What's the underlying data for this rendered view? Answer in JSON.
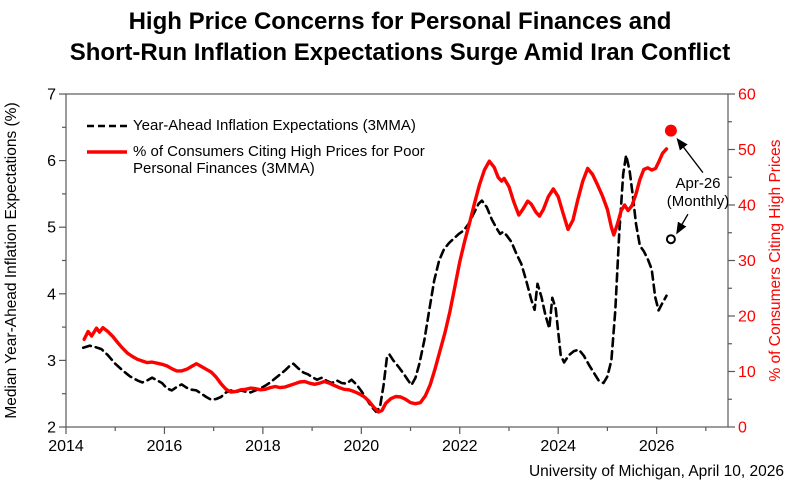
{
  "title": {
    "line1": "High Price Concerns for Personal Finances and",
    "line2": "Short-Run Inflation Expectations Surge Amid Iran Conflict"
  },
  "legend": {
    "row1": "Year-Ahead Inflation Expectations (3MMA)",
    "row2a": "% of Consumers Citing High Prices for Poor",
    "row2b": "Personal Finances (3MMA)"
  },
  "annotation": {
    "line1": "Apr-26",
    "line2": "(Monthly)"
  },
  "source": "University of Michigan, April 10, 2026",
  "chart_data": {
    "type": "line",
    "title": "High Price Concerns for Personal Finances and Short-Run Inflation Expectations Surge Amid Iran Conflict",
    "axis_color": "#595959",
    "legend_position": "top-left",
    "grid": false,
    "x_axis": {
      "label": "",
      "range": [
        2014,
        2027.45
      ],
      "major_ticks": [
        2014,
        2016,
        2018,
        2020,
        2022,
        2024,
        2026
      ],
      "minor_ticks": [
        2015,
        2017,
        2019,
        2021,
        2023,
        2025,
        2027
      ]
    },
    "left_axis": {
      "label": "Median Year-Ahead Inflation Expectations (%)",
      "color": "#000000",
      "range": [
        2,
        7
      ],
      "major_ticks": [
        2,
        3,
        4,
        5,
        6,
        7
      ],
      "minor_ticks": [
        2.5,
        3.5,
        4.5,
        5.5,
        6.5
      ]
    },
    "right_axis": {
      "label": "% of Consumers Citing High Prices",
      "color": "#ff0000",
      "range": [
        0,
        60
      ],
      "major_ticks": [
        0,
        10,
        20,
        30,
        40,
        50,
        60
      ],
      "minor_ticks": [
        5,
        15,
        25,
        35,
        45,
        55
      ]
    },
    "series": [
      {
        "name": "Year-Ahead Inflation Expectations (3MMA)",
        "axis": "left",
        "style": "dashed",
        "color": "#000000",
        "width": 2.6,
        "points": [
          [
            2014.35,
            3.19
          ],
          [
            2014.48,
            3.22
          ],
          [
            2014.6,
            3.2
          ],
          [
            2014.72,
            3.17
          ],
          [
            2014.85,
            3.08
          ],
          [
            2015.0,
            2.95
          ],
          [
            2015.15,
            2.85
          ],
          [
            2015.3,
            2.76
          ],
          [
            2015.45,
            2.7
          ],
          [
            2015.55,
            2.67
          ],
          [
            2015.65,
            2.7
          ],
          [
            2015.75,
            2.74
          ],
          [
            2015.85,
            2.7
          ],
          [
            2015.95,
            2.66
          ],
          [
            2016.05,
            2.58
          ],
          [
            2016.15,
            2.55
          ],
          [
            2016.25,
            2.6
          ],
          [
            2016.35,
            2.64
          ],
          [
            2016.45,
            2.59
          ],
          [
            2016.55,
            2.56
          ],
          [
            2016.65,
            2.55
          ],
          [
            2016.75,
            2.5
          ],
          [
            2016.85,
            2.45
          ],
          [
            2016.95,
            2.41
          ],
          [
            2017.05,
            2.42
          ],
          [
            2017.15,
            2.45
          ],
          [
            2017.25,
            2.52
          ],
          [
            2017.35,
            2.55
          ],
          [
            2017.45,
            2.52
          ],
          [
            2017.55,
            2.55
          ],
          [
            2017.65,
            2.53
          ],
          [
            2017.75,
            2.52
          ],
          [
            2017.85,
            2.55
          ],
          [
            2017.95,
            2.58
          ],
          [
            2018.05,
            2.62
          ],
          [
            2018.15,
            2.67
          ],
          [
            2018.25,
            2.73
          ],
          [
            2018.35,
            2.79
          ],
          [
            2018.45,
            2.85
          ],
          [
            2018.55,
            2.92
          ],
          [
            2018.62,
            2.95
          ],
          [
            2018.72,
            2.88
          ],
          [
            2018.82,
            2.82
          ],
          [
            2018.92,
            2.79
          ],
          [
            2019.0,
            2.75
          ],
          [
            2019.1,
            2.71
          ],
          [
            2019.2,
            2.74
          ],
          [
            2019.3,
            2.69
          ],
          [
            2019.4,
            2.66
          ],
          [
            2019.5,
            2.7
          ],
          [
            2019.6,
            2.66
          ],
          [
            2019.7,
            2.65
          ],
          [
            2019.8,
            2.71
          ],
          [
            2019.9,
            2.64
          ],
          [
            2020.0,
            2.54
          ],
          [
            2020.1,
            2.43
          ],
          [
            2020.2,
            2.31
          ],
          [
            2020.3,
            2.23
          ],
          [
            2020.38,
            2.3
          ],
          [
            2020.45,
            2.62
          ],
          [
            2020.52,
            3.04
          ],
          [
            2020.57,
            3.09
          ],
          [
            2020.65,
            3.0
          ],
          [
            2020.75,
            2.91
          ],
          [
            2020.85,
            2.81
          ],
          [
            2020.95,
            2.7
          ],
          [
            2021.02,
            2.63
          ],
          [
            2021.1,
            2.74
          ],
          [
            2021.18,
            2.95
          ],
          [
            2021.28,
            3.3
          ],
          [
            2021.38,
            3.75
          ],
          [
            2021.48,
            4.2
          ],
          [
            2021.58,
            4.5
          ],
          [
            2021.68,
            4.67
          ],
          [
            2021.78,
            4.76
          ],
          [
            2021.88,
            4.83
          ],
          [
            2021.98,
            4.9
          ],
          [
            2022.08,
            4.95
          ],
          [
            2022.18,
            5.05
          ],
          [
            2022.28,
            5.2
          ],
          [
            2022.38,
            5.35
          ],
          [
            2022.45,
            5.4
          ],
          [
            2022.55,
            5.3
          ],
          [
            2022.65,
            5.12
          ],
          [
            2022.75,
            4.98
          ],
          [
            2022.82,
            4.9
          ],
          [
            2022.88,
            4.93
          ],
          [
            2022.95,
            4.88
          ],
          [
            2023.05,
            4.78
          ],
          [
            2023.15,
            4.6
          ],
          [
            2023.25,
            4.45
          ],
          [
            2023.35,
            4.2
          ],
          [
            2023.45,
            3.92
          ],
          [
            2023.52,
            3.76
          ],
          [
            2023.58,
            4.15
          ],
          [
            2023.66,
            3.95
          ],
          [
            2023.74,
            3.68
          ],
          [
            2023.82,
            3.48
          ],
          [
            2023.88,
            3.94
          ],
          [
            2023.95,
            3.78
          ],
          [
            2024.05,
            3.08
          ],
          [
            2024.12,
            2.97
          ],
          [
            2024.22,
            3.08
          ],
          [
            2024.32,
            3.14
          ],
          [
            2024.42,
            3.16
          ],
          [
            2024.52,
            3.07
          ],
          [
            2024.62,
            2.94
          ],
          [
            2024.72,
            2.82
          ],
          [
            2024.82,
            2.7
          ],
          [
            2024.92,
            2.66
          ],
          [
            2025.0,
            2.76
          ],
          [
            2025.08,
            3.0
          ],
          [
            2025.16,
            3.75
          ],
          [
            2025.24,
            4.9
          ],
          [
            2025.32,
            5.8
          ],
          [
            2025.38,
            6.08
          ],
          [
            2025.45,
            5.85
          ],
          [
            2025.52,
            5.45
          ],
          [
            2025.58,
            5.05
          ],
          [
            2025.66,
            4.72
          ],
          [
            2025.74,
            4.64
          ],
          [
            2025.82,
            4.52
          ],
          [
            2025.9,
            4.37
          ],
          [
            2025.97,
            3.95
          ],
          [
            2026.04,
            3.75
          ],
          [
            2026.11,
            3.85
          ],
          [
            2026.2,
            3.97
          ]
        ]
      },
      {
        "name": "% of Consumers Citing High Prices for Poor Personal Finances (3MMA)",
        "axis": "right",
        "style": "solid",
        "color": "#ff0000",
        "width": 3.4,
        "points": [
          [
            2014.37,
            15.8
          ],
          [
            2014.45,
            17.2
          ],
          [
            2014.52,
            16.4
          ],
          [
            2014.62,
            17.8
          ],
          [
            2014.68,
            17.1
          ],
          [
            2014.75,
            17.9
          ],
          [
            2014.85,
            17.2
          ],
          [
            2014.95,
            16.3
          ],
          [
            2015.05,
            15.2
          ],
          [
            2015.15,
            14.2
          ],
          [
            2015.25,
            13.3
          ],
          [
            2015.35,
            12.7
          ],
          [
            2015.45,
            12.2
          ],
          [
            2015.55,
            11.9
          ],
          [
            2015.65,
            11.6
          ],
          [
            2015.75,
            11.7
          ],
          [
            2015.85,
            11.5
          ],
          [
            2015.95,
            11.3
          ],
          [
            2016.05,
            11.0
          ],
          [
            2016.15,
            10.5
          ],
          [
            2016.25,
            10.1
          ],
          [
            2016.35,
            10.1
          ],
          [
            2016.45,
            10.4
          ],
          [
            2016.55,
            10.9
          ],
          [
            2016.65,
            11.4
          ],
          [
            2016.75,
            10.9
          ],
          [
            2016.85,
            10.4
          ],
          [
            2016.95,
            9.9
          ],
          [
            2017.05,
            9.0
          ],
          [
            2017.15,
            7.8
          ],
          [
            2017.25,
            6.8
          ],
          [
            2017.35,
            6.3
          ],
          [
            2017.45,
            6.4
          ],
          [
            2017.55,
            6.7
          ],
          [
            2017.65,
            6.8
          ],
          [
            2017.75,
            7.0
          ],
          [
            2017.85,
            6.9
          ],
          [
            2017.95,
            6.7
          ],
          [
            2018.05,
            6.8
          ],
          [
            2018.15,
            7.1
          ],
          [
            2018.25,
            7.3
          ],
          [
            2018.35,
            7.1
          ],
          [
            2018.45,
            7.2
          ],
          [
            2018.55,
            7.5
          ],
          [
            2018.65,
            7.8
          ],
          [
            2018.75,
            8.1
          ],
          [
            2018.85,
            8.2
          ],
          [
            2018.95,
            7.9
          ],
          [
            2019.05,
            7.7
          ],
          [
            2019.15,
            7.9
          ],
          [
            2019.25,
            8.2
          ],
          [
            2019.35,
            7.9
          ],
          [
            2019.45,
            7.5
          ],
          [
            2019.55,
            7.1
          ],
          [
            2019.65,
            6.8
          ],
          [
            2019.75,
            6.7
          ],
          [
            2019.85,
            6.4
          ],
          [
            2019.95,
            6.0
          ],
          [
            2020.05,
            5.5
          ],
          [
            2020.15,
            4.7
          ],
          [
            2020.25,
            3.6
          ],
          [
            2020.35,
            2.7
          ],
          [
            2020.42,
            3.0
          ],
          [
            2020.5,
            4.3
          ],
          [
            2020.6,
            5.1
          ],
          [
            2020.7,
            5.5
          ],
          [
            2020.8,
            5.4
          ],
          [
            2020.9,
            5.0
          ],
          [
            2021.0,
            4.4
          ],
          [
            2021.1,
            4.2
          ],
          [
            2021.2,
            4.4
          ],
          [
            2021.3,
            5.6
          ],
          [
            2021.4,
            7.6
          ],
          [
            2021.5,
            10.5
          ],
          [
            2021.6,
            13.8
          ],
          [
            2021.7,
            17.0
          ],
          [
            2021.8,
            20.8
          ],
          [
            2021.9,
            25.2
          ],
          [
            2022.0,
            29.8
          ],
          [
            2022.1,
            33.5
          ],
          [
            2022.2,
            36.8
          ],
          [
            2022.3,
            40.3
          ],
          [
            2022.4,
            43.6
          ],
          [
            2022.5,
            46.3
          ],
          [
            2022.6,
            47.9
          ],
          [
            2022.7,
            46.8
          ],
          [
            2022.78,
            45.0
          ],
          [
            2022.85,
            44.3
          ],
          [
            2022.9,
            44.8
          ],
          [
            2023.0,
            43.3
          ],
          [
            2023.1,
            40.5
          ],
          [
            2023.2,
            38.2
          ],
          [
            2023.28,
            39.2
          ],
          [
            2023.38,
            40.7
          ],
          [
            2023.45,
            40.2
          ],
          [
            2023.55,
            38.7
          ],
          [
            2023.62,
            38.0
          ],
          [
            2023.7,
            39.2
          ],
          [
            2023.8,
            41.5
          ],
          [
            2023.9,
            42.9
          ],
          [
            2024.0,
            41.5
          ],
          [
            2024.1,
            38.5
          ],
          [
            2024.2,
            35.6
          ],
          [
            2024.3,
            37.3
          ],
          [
            2024.4,
            41.0
          ],
          [
            2024.5,
            44.3
          ],
          [
            2024.6,
            46.6
          ],
          [
            2024.7,
            45.5
          ],
          [
            2024.8,
            43.6
          ],
          [
            2024.9,
            41.6
          ],
          [
            2025.0,
            39.2
          ],
          [
            2025.08,
            36.0
          ],
          [
            2025.13,
            34.6
          ],
          [
            2025.2,
            36.5
          ],
          [
            2025.28,
            39.0
          ],
          [
            2025.35,
            40.0
          ],
          [
            2025.42,
            39.0
          ],
          [
            2025.5,
            39.9
          ],
          [
            2025.58,
            42.0
          ],
          [
            2025.66,
            44.6
          ],
          [
            2025.74,
            46.4
          ],
          [
            2025.82,
            46.7
          ],
          [
            2025.9,
            46.3
          ],
          [
            2025.98,
            46.6
          ],
          [
            2026.05,
            47.9
          ],
          [
            2026.12,
            49.3
          ],
          [
            2026.2,
            50.1
          ]
        ]
      }
    ],
    "markers": [
      {
        "label": "Apr-26 (Monthly)",
        "axis": "right",
        "t": 2026.29,
        "value": 53.4,
        "type": "filled-dot",
        "color": "#ff0000"
      },
      {
        "label": "Apr-26 (Monthly)",
        "axis": "left",
        "t": 2026.29,
        "value": 4.82,
        "type": "open-circle",
        "color": "#000000"
      }
    ]
  }
}
